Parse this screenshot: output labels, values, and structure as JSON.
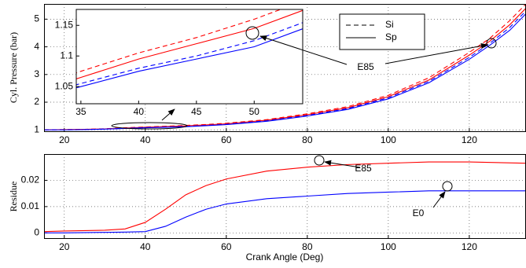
{
  "chart_data": [
    {
      "type": "line",
      "ylabel": "Cyl. Pressure (bar)",
      "x": [
        15,
        20,
        25,
        30,
        35,
        40,
        45,
        50,
        55,
        60,
        70,
        80,
        90,
        100,
        110,
        120,
        125,
        130,
        134
      ],
      "series": [
        {
          "color": "#ff0000",
          "dash": true,
          "values": [
            1.0,
            1.01,
            1.02,
            1.04,
            1.075,
            1.105,
            1.13,
            1.16,
            1.195,
            1.24,
            1.37,
            1.58,
            1.84,
            2.25,
            2.88,
            3.8,
            4.3,
            4.95,
            5.55
          ]
        },
        {
          "color": "#ff0000",
          "dash": false,
          "values": [
            1.0,
            1.01,
            1.02,
            1.035,
            1.065,
            1.095,
            1.12,
            1.145,
            1.18,
            1.22,
            1.35,
            1.55,
            1.8,
            2.2,
            2.8,
            3.7,
            4.2,
            4.8,
            5.4
          ]
        },
        {
          "color": "#0000ff",
          "dash": true,
          "values": [
            1.0,
            1.0,
            1.01,
            1.03,
            1.055,
            1.08,
            1.1,
            1.125,
            1.16,
            1.2,
            1.33,
            1.52,
            1.77,
            2.16,
            2.75,
            3.62,
            4.12,
            4.7,
            5.3
          ]
        },
        {
          "color": "#0000ff",
          "dash": false,
          "values": [
            1.0,
            1.0,
            1.01,
            1.025,
            1.05,
            1.075,
            1.095,
            1.115,
            1.15,
            1.19,
            1.31,
            1.5,
            1.74,
            2.12,
            2.7,
            3.55,
            4.05,
            4.6,
            5.2
          ]
        }
      ],
      "xlim": [
        15,
        134
      ],
      "ylim": [
        0.95,
        5.55
      ],
      "xticks": [
        20,
        40,
        60,
        80,
        100,
        120
      ],
      "yticks": [
        1,
        2,
        3,
        4,
        5
      ],
      "grid": true,
      "legend": [
        {
          "label": "Si",
          "dash": true
        },
        {
          "label": "Sp",
          "dash": false
        }
      ],
      "annotations": [
        "E85"
      ],
      "inset": {
        "xlim": [
          34.6,
          54.2
        ],
        "ylim": [
          1.022,
          1.176
        ],
        "xticks": [
          35,
          40,
          45,
          50
        ],
        "yticks": [
          1.05,
          1.1,
          1.15
        ]
      }
    },
    {
      "type": "line",
      "ylabel": "Residue",
      "xlabel": "Crank Angle (Deg)",
      "x": [
        15,
        20,
        30,
        35,
        40,
        45,
        50,
        55,
        60,
        70,
        80,
        90,
        100,
        110,
        120,
        134
      ],
      "series": [
        {
          "color": "#ff0000",
          "dash": false,
          "values": [
            0.0005,
            0.0007,
            0.001,
            0.0015,
            0.004,
            0.009,
            0.0145,
            0.018,
            0.0205,
            0.0235,
            0.025,
            0.026,
            0.0265,
            0.027,
            0.027,
            0.0265
          ]
        },
        {
          "color": "#0000ff",
          "dash": false,
          "values": [
            0,
            0,
            0.0002,
            0.0003,
            0.0005,
            0.0025,
            0.006,
            0.009,
            0.011,
            0.013,
            0.014,
            0.015,
            0.0155,
            0.016,
            0.016,
            0.016
          ]
        }
      ],
      "xlim": [
        15,
        134
      ],
      "ylim": [
        -0.002,
        0.03
      ],
      "xticks": [
        20,
        40,
        60,
        80,
        100,
        120
      ],
      "yticks": [
        0,
        0.01,
        0.02
      ],
      "grid": true,
      "annotations": [
        "E85",
        "E0"
      ]
    }
  ]
}
